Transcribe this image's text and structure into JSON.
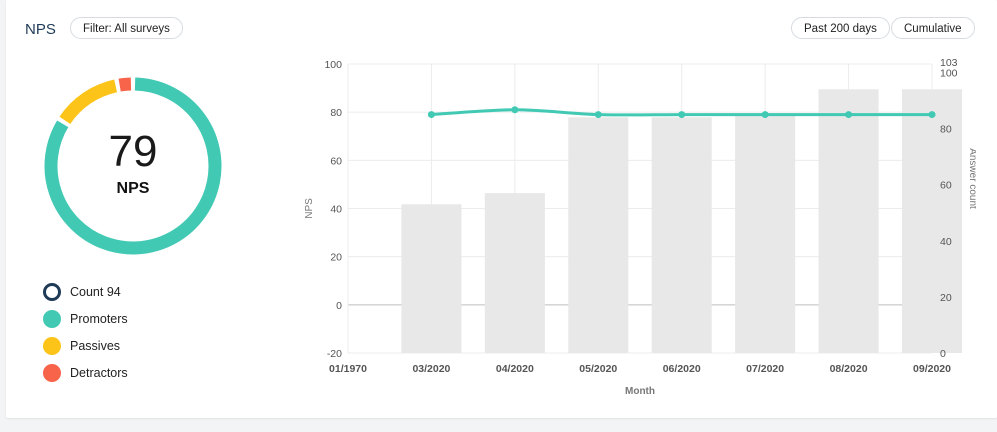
{
  "header": {
    "title": "NPS",
    "filter_label": "Filter: All surveys",
    "range_label": "Past 200 days",
    "mode_label": "Cumulative"
  },
  "summary": {
    "nps_value": "79",
    "nps_label": "NPS",
    "donut": {
      "promoters_fraction": 0.84,
      "passives_fraction": 0.13,
      "detractors_fraction": 0.03
    }
  },
  "legend": {
    "count_label": "Count 94",
    "promoters_label": "Promoters",
    "passives_label": "Passives",
    "detractors_label": "Detractors"
  },
  "colors": {
    "promoters": "#41c9b4",
    "passives": "#fcc419",
    "detractors": "#f76449",
    "count_ring": "#1f3b57",
    "bars": "#e8e8e8",
    "line": "#41c9b4"
  },
  "chart_data": {
    "type": "bar",
    "categories": [
      "01/1970",
      "03/2020",
      "04/2020",
      "05/2020",
      "06/2020",
      "07/2020",
      "08/2020",
      "09/2020"
    ],
    "bars": [
      {
        "x": "03/2020",
        "value": 53
      },
      {
        "x": "04/2020",
        "value": 57
      },
      {
        "x": "05/2020",
        "value": 84
      },
      {
        "x": "06/2020",
        "value": 84
      },
      {
        "x": "07/2020",
        "value": 85
      },
      {
        "x": "08/2020",
        "value": 94
      },
      {
        "x": "09/2020",
        "value": 94
      }
    ],
    "line": [
      {
        "x": "03/2020",
        "value": 79
      },
      {
        "x": "04/2020",
        "value": 81
      },
      {
        "x": "05/2020",
        "value": 79
      },
      {
        "x": "06/2020",
        "value": 79
      },
      {
        "x": "07/2020",
        "value": 79
      },
      {
        "x": "08/2020",
        "value": 79
      },
      {
        "x": "09/2020",
        "value": 79
      }
    ],
    "xlabel": "Month",
    "ylabel": "NPS",
    "y2label": "Answer count",
    "ylim": [
      -20,
      100
    ],
    "y2lim": [
      0,
      103
    ],
    "yticks": [
      -20,
      0,
      20,
      40,
      60,
      80,
      100
    ],
    "y2ticks": [
      0,
      20,
      40,
      60,
      80,
      100,
      103
    ],
    "grid": true
  }
}
